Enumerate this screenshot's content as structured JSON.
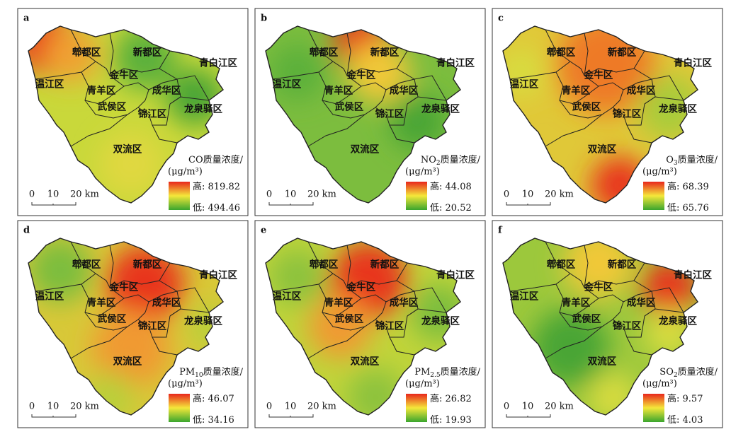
{
  "districts": [
    "郫都区",
    "新都区",
    "青白江区",
    "金牛区",
    "温江区",
    "青羊区",
    "成华区",
    "武侯区",
    "龙泉驿区",
    "锦江区",
    "双流区"
  ],
  "scale_labels": [
    "0",
    "10",
    "20 km"
  ],
  "title_suffix": "质量浓度/",
  "unit": "(μg/m³)",
  "high_prefix": "高: ",
  "low_prefix": "低: ",
  "panels": [
    {
      "letter": "a",
      "pollutant": "CO",
      "high": 819.82,
      "low": 494.46
    },
    {
      "letter": "b",
      "pollutant": "NO",
      "subscript": "2",
      "high": 44.08,
      "low": 20.52
    },
    {
      "letter": "c",
      "pollutant": "O",
      "subscript": "3",
      "high": 68.39,
      "low": 65.76
    },
    {
      "letter": "d",
      "pollutant": "PM",
      "subscript": "10",
      "high": 46.07,
      "low": 34.16
    },
    {
      "letter": "e",
      "pollutant": "PM",
      "subscript": "2.5",
      "high": 26.82,
      "low": 19.93
    },
    {
      "letter": "f",
      "pollutant": "SO",
      "subscript": "2",
      "high": 9.57,
      "low": 4.03
    }
  ]
}
